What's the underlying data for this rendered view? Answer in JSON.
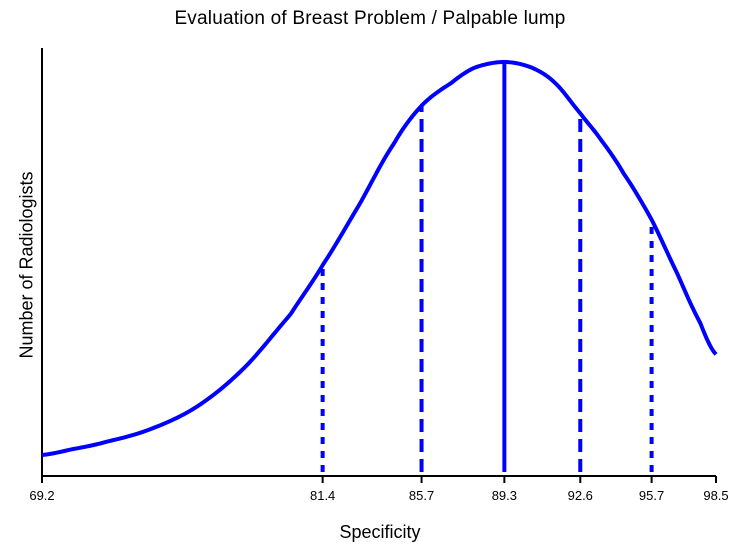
{
  "chart_data": {
    "type": "line",
    "title": "Evaluation of Breast Problem / Palpable lump",
    "xlabel": "Specificity",
    "ylabel": "Number of Radiologists",
    "xlim": [
      69.2,
      98.5
    ],
    "x_tick_labels": [
      "69.2",
      "81.4",
      "85.7",
      "89.3",
      "92.6",
      "95.7",
      "98.5"
    ],
    "x_ticks": [
      69.2,
      81.4,
      85.7,
      89.3,
      92.6,
      95.7,
      98.5
    ],
    "curve": {
      "x": [
        69.2,
        70.5,
        72.0,
        74.0,
        76.0,
        78.0,
        80.0,
        81.4,
        83.0,
        84.5,
        85.7,
        87.0,
        88.0,
        89.3,
        90.5,
        91.5,
        92.6,
        93.5,
        94.5,
        95.7,
        96.8,
        97.8,
        98.5
      ],
      "y": [
        0.0,
        0.015,
        0.035,
        0.07,
        0.13,
        0.23,
        0.37,
        0.5,
        0.66,
        0.82,
        0.92,
        0.98,
        1.02,
        1.035,
        1.02,
        0.98,
        0.9,
        0.83,
        0.74,
        0.62,
        0.48,
        0.35,
        0.265
      ],
      "color": "#0000ff"
    },
    "reference_lines": [
      {
        "x": 81.4,
        "style": "dotted"
      },
      {
        "x": 85.7,
        "style": "dashed"
      },
      {
        "x": 89.3,
        "style": "solid"
      },
      {
        "x": 92.6,
        "style": "dashed"
      },
      {
        "x": 95.7,
        "style": "dotted"
      }
    ],
    "grid": false,
    "legend": "none"
  }
}
